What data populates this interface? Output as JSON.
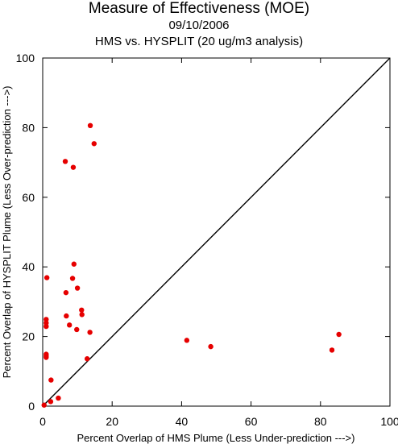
{
  "chart_data": {
    "type": "scatter",
    "title": "Measure of Effectiveness (MOE)",
    "subtitles": [
      "09/10/2006",
      "HMS vs. HYSPLIT  (20 ug/m3 analysis)"
    ],
    "xlabel": "Percent Overlap of HMS Plume (Less Under-prediction --->)",
    "ylabel": "Percent Overlap of HYSPLIT Plume (Less Over-prediction --->)",
    "xlim": [
      0,
      100
    ],
    "ylim": [
      0,
      100
    ],
    "xticks": [
      0,
      20,
      40,
      60,
      80,
      100
    ],
    "yticks": [
      0,
      20,
      40,
      60,
      80,
      100
    ],
    "grid": false,
    "reference_line": "y = x",
    "point_color": "#e60000",
    "points": [
      [
        13.7,
        80.6
      ],
      [
        14.8,
        75.4
      ],
      [
        6.5,
        70.3
      ],
      [
        8.8,
        68.6
      ],
      [
        9.0,
        40.8
      ],
      [
        8.6,
        36.7
      ],
      [
        10.0,
        33.9
      ],
      [
        6.7,
        32.6
      ],
      [
        1.2,
        36.9
      ],
      [
        6.8,
        25.9
      ],
      [
        11.2,
        27.6
      ],
      [
        11.3,
        26.3
      ],
      [
        7.7,
        23.3
      ],
      [
        9.8,
        22.0
      ],
      [
        13.6,
        21.2
      ],
      [
        1.0,
        24.9
      ],
      [
        1.0,
        23.9
      ],
      [
        1.0,
        22.9
      ],
      [
        1.0,
        14.9
      ],
      [
        1.0,
        14.4
      ],
      [
        1.0,
        14.0
      ],
      [
        12.8,
        13.6
      ],
      [
        2.4,
        7.5
      ],
      [
        4.5,
        2.3
      ],
      [
        2.3,
        1.3
      ],
      [
        0.4,
        0.3
      ],
      [
        41.5,
        18.9
      ],
      [
        48.4,
        17.1
      ],
      [
        83.3,
        16.1
      ],
      [
        85.3,
        20.6
      ]
    ]
  }
}
